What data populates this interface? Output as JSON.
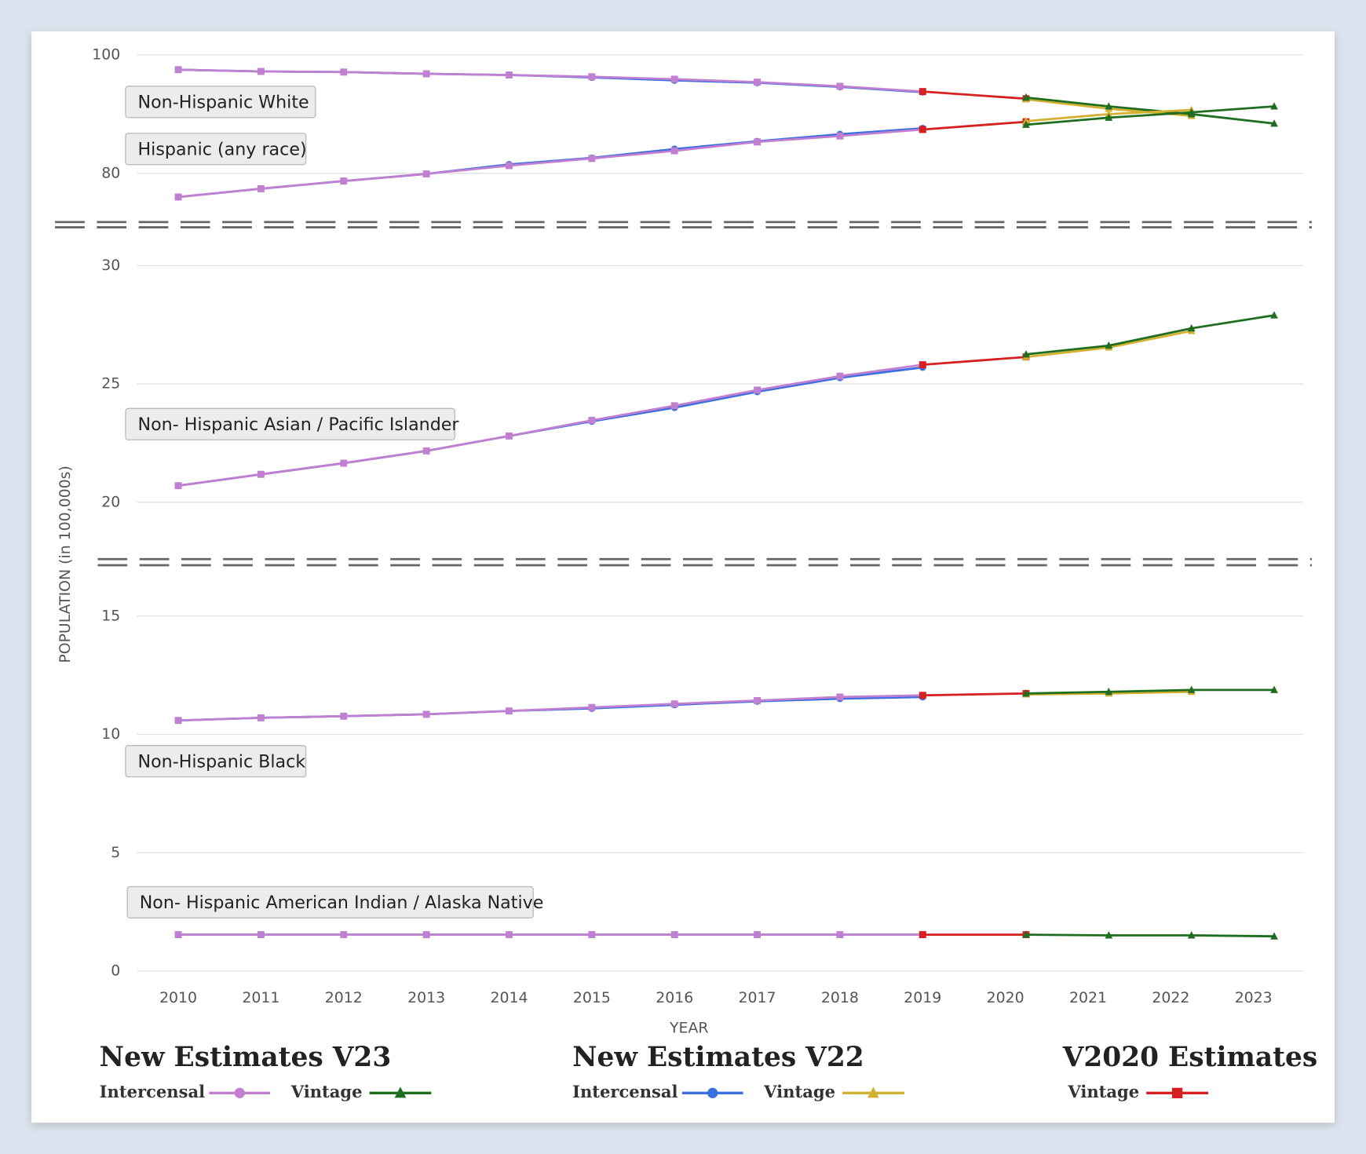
{
  "chart_data": {
    "type": "line",
    "x_label": "YEAR",
    "y_label": "POPULATION (in 100,000s)",
    "xlim": [
      2009.5,
      2023.6
    ],
    "xticks": [
      2010,
      2011,
      2012,
      2013,
      2014,
      2015,
      2016,
      2017,
      2018,
      2019,
      2020,
      2021,
      2022,
      2023
    ],
    "grid": true,
    "panels": [
      {
        "ylim": [
          75,
          100
        ],
        "yticks": [
          80,
          100
        ],
        "groups": [
          {
            "label": "Non-Hispanic White",
            "series": [
              {
                "color": "#3b6fe0",
                "marker": "circle",
                "x": [
                  2010,
                  2011,
                  2012,
                  2013,
                  2014,
                  2015,
                  2016,
                  2017,
                  2018,
                  2019
                ],
                "values": [
                  97.5,
                  97.2,
                  97.1,
                  96.8,
                  96.6,
                  96.2,
                  95.7,
                  95.3,
                  94.6,
                  93.7
                ]
              },
              {
                "color": "#c07fd0",
                "marker": "square",
                "x": [
                  2010,
                  2011,
                  2012,
                  2013,
                  2014,
                  2015,
                  2016,
                  2017,
                  2018,
                  2019
                ],
                "values": [
                  97.5,
                  97.2,
                  97.1,
                  96.8,
                  96.6,
                  96.3,
                  95.9,
                  95.4,
                  94.7,
                  93.8
                ]
              },
              {
                "color": "#d6201f",
                "marker": "square",
                "x": [
                  2019,
                  2020.25
                ],
                "values": [
                  93.8,
                  92.6
                ]
              },
              {
                "color": "#d4b030",
                "marker": "triangle",
                "x": [
                  2020.25,
                  2021.25,
                  2022.25
                ],
                "values": [
                  92.5,
                  90.9,
                  89.7
                ]
              },
              {
                "color": "#1f6e1f",
                "marker": "triangle",
                "x": [
                  2020.25,
                  2021.25,
                  2022.25,
                  2023.25
                ],
                "values": [
                  92.8,
                  91.3,
                  90.0,
                  88.4
                ]
              }
            ]
          },
          {
            "label": "Hispanic (any race)",
            "series": [
              {
                "color": "#3b6fe0",
                "marker": "circle",
                "x": [
                  2010,
                  2011,
                  2012,
                  2013,
                  2014,
                  2015,
                  2016,
                  2017,
                  2018,
                  2019
                ],
                "values": [
                  76.0,
                  77.4,
                  78.7,
                  79.9,
                  81.5,
                  82.6,
                  84.1,
                  85.4,
                  86.6,
                  87.6
                ]
              },
              {
                "color": "#c07fd0",
                "marker": "square",
                "x": [
                  2010,
                  2011,
                  2012,
                  2013,
                  2014,
                  2015,
                  2016,
                  2017,
                  2018,
                  2019
                ],
                "values": [
                  76.0,
                  77.4,
                  78.7,
                  79.9,
                  81.3,
                  82.5,
                  83.8,
                  85.3,
                  86.3,
                  87.4
                ]
              },
              {
                "color": "#d6201f",
                "marker": "square",
                "x": [
                  2019,
                  2020.25
                ],
                "values": [
                  87.4,
                  88.7
                ]
              },
              {
                "color": "#d4b030",
                "marker": "triangle",
                "x": [
                  2020.25,
                  2021.25,
                  2022.25
                ],
                "values": [
                  88.8,
                  90.0,
                  90.7
                ]
              },
              {
                "color": "#1f6e1f",
                "marker": "triangle",
                "x": [
                  2020.25,
                  2021.25,
                  2022.25,
                  2023.25
                ],
                "values": [
                  88.2,
                  89.4,
                  90.3,
                  91.3
                ]
              }
            ]
          }
        ]
      },
      {
        "ylim": [
          18,
          30
        ],
        "yticks": [
          20,
          25,
          30
        ],
        "groups": [
          {
            "label": "Non- Hispanic Asian / Pacific Islander",
            "series": [
              {
                "color": "#3b6fe0",
                "marker": "circle",
                "x": [
                  2010,
                  2011,
                  2012,
                  2013,
                  2014,
                  2015,
                  2016,
                  2017,
                  2018,
                  2019
                ],
                "values": [
                  20.7,
                  21.18,
                  21.65,
                  22.17,
                  22.8,
                  23.42,
                  24.0,
                  24.67,
                  25.26,
                  25.7
                ]
              },
              {
                "color": "#c07fd0",
                "marker": "square",
                "x": [
                  2010,
                  2011,
                  2012,
                  2013,
                  2014,
                  2015,
                  2016,
                  2017,
                  2018,
                  2019
                ],
                "values": [
                  20.7,
                  21.18,
                  21.65,
                  22.17,
                  22.8,
                  23.46,
                  24.08,
                  24.74,
                  25.33,
                  25.81
                ]
              },
              {
                "color": "#d6201f",
                "marker": "square",
                "x": [
                  2019,
                  2020.25
                ],
                "values": [
                  25.81,
                  26.14
                ]
              },
              {
                "color": "#d4b030",
                "marker": "triangle",
                "x": [
                  2020.25,
                  2021.25,
                  2022.25
                ],
                "values": [
                  26.14,
                  26.54,
                  27.24
                ]
              },
              {
                "color": "#1f6e1f",
                "marker": "triangle",
                "x": [
                  2020.25,
                  2021.25,
                  2022.25,
                  2023.25
                ],
                "values": [
                  26.25,
                  26.62,
                  27.35,
                  27.9
                ]
              }
            ]
          }
        ]
      },
      {
        "ylim": [
          0,
          17
        ],
        "yticks": [
          0,
          5,
          10,
          15
        ],
        "groups": [
          {
            "label": "Non-Hispanic Black",
            "series": [
              {
                "color": "#3b6fe0",
                "marker": "circle",
                "x": [
                  2010,
                  2011,
                  2012,
                  2013,
                  2014,
                  2015,
                  2016,
                  2017,
                  2018,
                  2019
                ],
                "values": [
                  10.59,
                  10.7,
                  10.77,
                  10.85,
                  10.99,
                  11.1,
                  11.25,
                  11.4,
                  11.51,
                  11.58
                ]
              },
              {
                "color": "#c07fd0",
                "marker": "square",
                "x": [
                  2010,
                  2011,
                  2012,
                  2013,
                  2014,
                  2015,
                  2016,
                  2017,
                  2018,
                  2019
                ],
                "values": [
                  10.59,
                  10.7,
                  10.77,
                  10.85,
                  10.99,
                  11.14,
                  11.29,
                  11.43,
                  11.58,
                  11.65
                ]
              },
              {
                "color": "#d6201f",
                "marker": "square",
                "x": [
                  2019,
                  2020.25
                ],
                "values": [
                  11.65,
                  11.73
                ]
              },
              {
                "color": "#d4b030",
                "marker": "triangle",
                "x": [
                  2020.25,
                  2021.25,
                  2022.25
                ],
                "values": [
                  11.69,
                  11.73,
                  11.8
                ]
              },
              {
                "color": "#1f6e1f",
                "marker": "triangle",
                "x": [
                  2020.25,
                  2021.25,
                  2022.25,
                  2023.25
                ],
                "values": [
                  11.73,
                  11.8,
                  11.88,
                  11.88
                ]
              }
            ]
          },
          {
            "label": "Non- Hispanic American Indian / Alaska Native",
            "series": [
              {
                "color": "#3b6fe0",
                "marker": "circle",
                "x": [
                  2010,
                  2011,
                  2012,
                  2013,
                  2014,
                  2015,
                  2016,
                  2017,
                  2018,
                  2019
                ],
                "values": [
                  1.54,
                  1.54,
                  1.54,
                  1.54,
                  1.54,
                  1.54,
                  1.54,
                  1.54,
                  1.54,
                  1.54
                ]
              },
              {
                "color": "#c07fd0",
                "marker": "square",
                "x": [
                  2010,
                  2011,
                  2012,
                  2013,
                  2014,
                  2015,
                  2016,
                  2017,
                  2018,
                  2019
                ],
                "values": [
                  1.54,
                  1.54,
                  1.54,
                  1.54,
                  1.54,
                  1.54,
                  1.54,
                  1.54,
                  1.54,
                  1.54
                ]
              },
              {
                "color": "#d6201f",
                "marker": "square",
                "x": [
                  2019,
                  2020.25
                ],
                "values": [
                  1.54,
                  1.54
                ]
              },
              {
                "color": "#1f6e1f",
                "marker": "triangle",
                "x": [
                  2020.25,
                  2021.25,
                  2022.25,
                  2023.25
                ],
                "values": [
                  1.54,
                  1.51,
                  1.51,
                  1.47
                ]
              }
            ]
          }
        ]
      }
    ],
    "legend": [
      {
        "title": "New Estimates V23",
        "entries": [
          {
            "name": "Intercensal",
            "color": "#c07fd0",
            "marker": "circle"
          },
          {
            "name": "Vintage",
            "color": "#1f6e1f",
            "marker": "triangle"
          }
        ]
      },
      {
        "title": "New Estimates V22",
        "entries": [
          {
            "name": "Intercensal",
            "color": "#3b6fe0",
            "marker": "circle"
          },
          {
            "name": "Vintage",
            "color": "#d4b030",
            "marker": "triangle"
          }
        ]
      },
      {
        "title": "V2020 Estimates",
        "entries": [
          {
            "name": "Vintage",
            "color": "#d6201f",
            "marker": "square"
          }
        ]
      }
    ]
  }
}
